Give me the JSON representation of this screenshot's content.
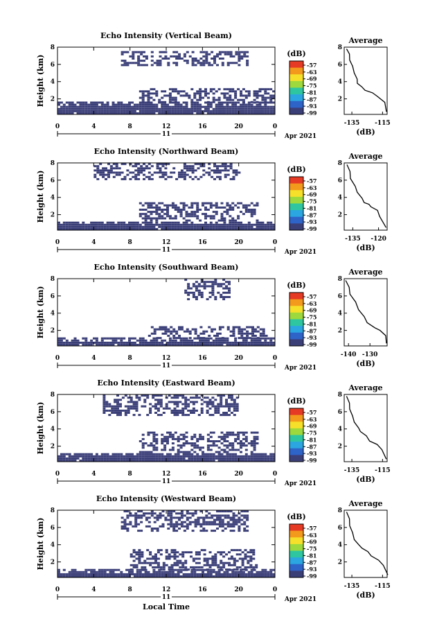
{
  "chart_data": [
    {
      "type": "heatmap",
      "title": "Echo Intensity (Vertical Beam)",
      "ylabel": "Height (km)",
      "x_ticks": [
        "0",
        "4",
        "8",
        "12",
        "16",
        "20",
        "0"
      ],
      "date_label": "11",
      "month_label": "Apr 2021",
      "xlim": [
        0,
        24
      ],
      "ylim": [
        0.2,
        8
      ],
      "y_ticks": [
        "2",
        "4",
        "6",
        "8"
      ],
      "colorbar_unit": "(dB)",
      "colorbar_ticks": [
        "-57",
        "-63",
        "-69",
        "-75",
        "-81",
        "-87",
        "-93",
        "-99"
      ],
      "echo_layers": [
        {
          "x": [
            0,
            24
          ],
          "h": [
            0.2,
            1.5
          ]
        },
        {
          "x": [
            9,
            24
          ],
          "h": [
            1.5,
            3.2
          ]
        },
        {
          "x": [
            7,
            21
          ],
          "h": [
            5.8,
            7.5
          ]
        }
      ],
      "profile": {
        "title": "Average",
        "xlabel": "(dB)",
        "x_ticks": [
          "-135",
          "-115"
        ],
        "xlim": [
          -140,
          -112
        ],
        "points": [
          [
            -138,
            7.8
          ],
          [
            -137,
            7.2
          ],
          [
            -136,
            6.5
          ],
          [
            -135,
            5.8
          ],
          [
            -133,
            5.0
          ],
          [
            -132,
            4.3
          ],
          [
            -131,
            3.8
          ],
          [
            -129,
            3.4
          ],
          [
            -126,
            3.0
          ],
          [
            -122,
            2.7
          ],
          [
            -118,
            2.3
          ],
          [
            -114,
            1.6
          ],
          [
            -112,
            0.5
          ]
        ]
      }
    },
    {
      "type": "heatmap",
      "title": "Echo Intensity (Northward Beam)",
      "ylabel": "Height (km)",
      "x_ticks": [
        "0",
        "4",
        "8",
        "12",
        "16",
        "20",
        "0"
      ],
      "date_label": "11",
      "month_label": "Apr 2021",
      "xlim": [
        0,
        24
      ],
      "ylim": [
        0.2,
        8
      ],
      "y_ticks": [
        "2",
        "4",
        "6",
        "8"
      ],
      "colorbar_unit": "(dB)",
      "colorbar_ticks": [
        "-57",
        "-63",
        "-69",
        "-75",
        "-81",
        "-87",
        "-93",
        "-99"
      ],
      "echo_layers": [
        {
          "x": [
            0,
            24
          ],
          "h": [
            0.2,
            1.2
          ]
        },
        {
          "x": [
            9,
            22
          ],
          "h": [
            1.2,
            3.3
          ]
        },
        {
          "x": [
            4,
            20
          ],
          "h": [
            6.0,
            7.8
          ]
        }
      ],
      "profile": {
        "title": "Average",
        "xlabel": "(dB)",
        "x_ticks": [
          "-135",
          "-120"
        ],
        "xlim": [
          -140,
          -115
        ],
        "points": [
          [
            -138,
            7.8
          ],
          [
            -137,
            7.0
          ],
          [
            -136,
            6.2
          ],
          [
            -134,
            5.3
          ],
          [
            -132,
            4.6
          ],
          [
            -130,
            3.9
          ],
          [
            -128,
            3.4
          ],
          [
            -126,
            3.2
          ],
          [
            -124,
            2.9
          ],
          [
            -121,
            2.5
          ],
          [
            -119,
            1.8
          ],
          [
            -116,
            0.5
          ]
        ]
      }
    },
    {
      "type": "heatmap",
      "title": "Echo Intensity (Southward Beam)",
      "ylabel": "Height (km)",
      "x_ticks": [
        "0",
        "4",
        "8",
        "12",
        "16",
        "20",
        "0"
      ],
      "date_label": "11",
      "month_label": "Apr 2021",
      "xlim": [
        0,
        24
      ],
      "ylim": [
        0.2,
        8
      ],
      "y_ticks": [
        "2",
        "4",
        "6",
        "8"
      ],
      "colorbar_unit": "(dB)",
      "colorbar_ticks": [
        "-57",
        "-63",
        "-69",
        "-75",
        "-81",
        "-87",
        "-93",
        "-99"
      ],
      "echo_layers": [
        {
          "x": [
            0,
            24
          ],
          "h": [
            0.2,
            1.0
          ]
        },
        {
          "x": [
            10,
            23
          ],
          "h": [
            1.0,
            2.5
          ]
        },
        {
          "x": [
            14,
            19
          ],
          "h": [
            5.5,
            8.0
          ]
        }
      ],
      "profile": {
        "title": "Average",
        "xlabel": "(dB)",
        "x_ticks": [
          "-140",
          "-130"
        ],
        "xlim": [
          -142,
          -122
        ],
        "points": [
          [
            -141,
            7.8
          ],
          [
            -140,
            7.0
          ],
          [
            -139,
            6.2
          ],
          [
            -137,
            5.3
          ],
          [
            -135,
            4.4
          ],
          [
            -133,
            3.6
          ],
          [
            -131,
            2.9
          ],
          [
            -128,
            2.3
          ],
          [
            -125,
            2.0
          ],
          [
            -123,
            1.4
          ],
          [
            -122,
            0.5
          ]
        ]
      }
    },
    {
      "type": "heatmap",
      "title": "Echo Intensity (Eastward Beam)",
      "ylabel": "Height (km)",
      "x_ticks": [
        "0",
        "4",
        "8",
        "12",
        "16",
        "20",
        "0"
      ],
      "date_label": "11",
      "month_label": "Apr 2021",
      "xlim": [
        0,
        24
      ],
      "ylim": [
        0.2,
        8
      ],
      "y_ticks": [
        "2",
        "4",
        "6",
        "8"
      ],
      "colorbar_unit": "(dB)",
      "colorbar_ticks": [
        "-57",
        "-63",
        "-69",
        "-75",
        "-81",
        "-87",
        "-93",
        "-99"
      ],
      "echo_layers": [
        {
          "x": [
            0,
            24
          ],
          "h": [
            0.2,
            1.2
          ]
        },
        {
          "x": [
            9,
            22
          ],
          "h": [
            1.2,
            3.5
          ]
        },
        {
          "x": [
            5,
            20
          ],
          "h": [
            5.5,
            7.8
          ]
        }
      ],
      "profile": {
        "title": "Average",
        "xlabel": "(dB)",
        "x_ticks": [
          "-135",
          "-115"
        ],
        "xlim": [
          -140,
          -112
        ],
        "points": [
          [
            -138,
            7.8
          ],
          [
            -137,
            7.0
          ],
          [
            -136,
            6.3
          ],
          [
            -135,
            5.5
          ],
          [
            -133,
            4.8
          ],
          [
            -131,
            4.1
          ],
          [
            -129,
            3.7
          ],
          [
            -126,
            3.2
          ],
          [
            -123,
            2.6
          ],
          [
            -119,
            2.2
          ],
          [
            -115,
            1.6
          ],
          [
            -113,
            0.5
          ]
        ]
      }
    },
    {
      "type": "heatmap",
      "title": "Echo Intensity (Westward Beam)",
      "ylabel": "Height (km)",
      "x_ticks": [
        "0",
        "4",
        "8",
        "12",
        "16",
        "20",
        "0"
      ],
      "date_label": "11",
      "month_label": "Apr 2021",
      "xlabel": "Local Time",
      "xlim": [
        0,
        24
      ],
      "ylim": [
        0.2,
        8
      ],
      "y_ticks": [
        "2",
        "4",
        "6",
        "8"
      ],
      "colorbar_unit": "(dB)",
      "colorbar_ticks": [
        "-57",
        "-63",
        "-69",
        "-75",
        "-81",
        "-87",
        "-93",
        "-99"
      ],
      "echo_layers": [
        {
          "x": [
            0,
            24
          ],
          "h": [
            0.2,
            1.0
          ]
        },
        {
          "x": [
            8,
            22
          ],
          "h": [
            1.0,
            3.3
          ]
        },
        {
          "x": [
            7,
            21
          ],
          "h": [
            5.5,
            8.0
          ]
        }
      ],
      "profile": {
        "title": "Average",
        "xlabel": "(dB)",
        "x_ticks": [
          "-135",
          "-115"
        ],
        "xlim": [
          -140,
          -112
        ],
        "points": [
          [
            -138,
            7.8
          ],
          [
            -137,
            7.0
          ],
          [
            -136,
            6.2
          ],
          [
            -135,
            5.4
          ],
          [
            -133,
            4.6
          ],
          [
            -131,
            4.0
          ],
          [
            -128,
            3.6
          ],
          [
            -125,
            3.2
          ],
          [
            -122,
            2.7
          ],
          [
            -118,
            2.2
          ],
          [
            -114,
            1.6
          ],
          [
            -112,
            0.5
          ]
        ]
      }
    }
  ],
  "colors": {
    "echo": "#3b3f78",
    "colorbar": [
      "#e63a24",
      "#f39a1c",
      "#f6e02a",
      "#9dd93c",
      "#2ec6a0",
      "#2ba6e0",
      "#2e63c8",
      "#3b3f78"
    ]
  }
}
